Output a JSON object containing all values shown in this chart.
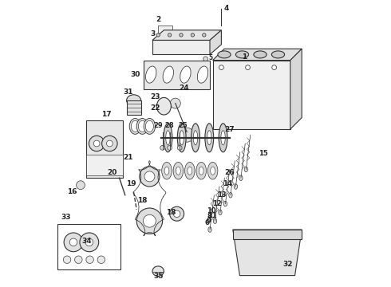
{
  "bg_color": "#ffffff",
  "line_color": "#333333",
  "label_fontsize": 6.5,
  "label_color": "#222222"
}
